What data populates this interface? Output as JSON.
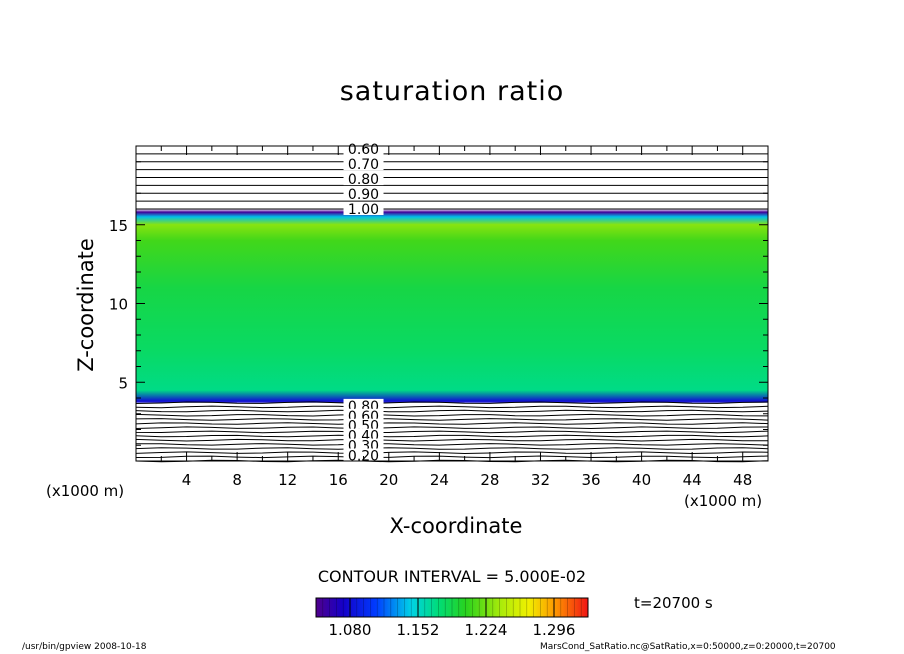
{
  "chart_data": {
    "type": "heatmap",
    "title": "saturation ratio",
    "xlabel": "X-coordinate",
    "ylabel": "Z-coordinate",
    "x_unit_left": "(x1000 m)",
    "x_unit_right": "(x1000 m)",
    "xlim": [
      0,
      50
    ],
    "ylim": [
      0,
      20
    ],
    "x_ticks": [
      "4",
      "8",
      "12",
      "16",
      "20",
      "24",
      "28",
      "32",
      "36",
      "40",
      "44",
      "48"
    ],
    "x_tick_values": [
      4,
      8,
      12,
      16,
      20,
      24,
      28,
      32,
      36,
      40,
      44,
      48
    ],
    "y_ticks": [
      "5",
      "10",
      "15"
    ],
    "y_tick_values": [
      5,
      10,
      15
    ],
    "vertical_profile": [
      {
        "z": 0.0,
        "value": 0.2
      },
      {
        "z": 3.3,
        "value": 0.9
      },
      {
        "z": 3.8,
        "value": 1.08
      },
      {
        "z": 4.5,
        "value": 1.17
      },
      {
        "z": 7.0,
        "value": 1.18
      },
      {
        "z": 11.0,
        "value": 1.19
      },
      {
        "z": 14.0,
        "value": 1.21
      },
      {
        "z": 15.0,
        "value": 1.23
      },
      {
        "z": 15.5,
        "value": 1.14
      },
      {
        "z": 15.8,
        "value": 1.05
      },
      {
        "z": 16.0,
        "value": 1.0
      },
      {
        "z": 20.0,
        "value": 0.6
      }
    ],
    "top_contours": {
      "z_range": [
        16.0,
        20.0
      ],
      "count": 9
    },
    "bottom_contours": {
      "z_range": [
        0.0,
        3.7
      ],
      "count": 15
    },
    "contour_labels_top": [
      "0.60",
      "0.70",
      "0.80",
      "0.90",
      "1.00"
    ],
    "contour_labels_bottom": [
      "0.80",
      "0.60",
      "0.50",
      "0.40",
      "0.30",
      "0.20"
    ],
    "contour_interval": "CONTOUR INTERVAL = 5.000E-02",
    "colorbar": {
      "range": [
        1.044,
        1.332
      ],
      "labels": [
        "1.080",
        "1.152",
        "1.224",
        "1.296"
      ],
      "label_values": [
        1.08,
        1.152,
        1.224,
        1.296
      ]
    },
    "time_label": "t=20700 s"
  },
  "footer": {
    "left": "/usr/bin/gpview   2008-10-18",
    "right": "MarsCond_SatRatio.nc@SatRatio,x=0:50000,z=0:20000,t=20700"
  }
}
